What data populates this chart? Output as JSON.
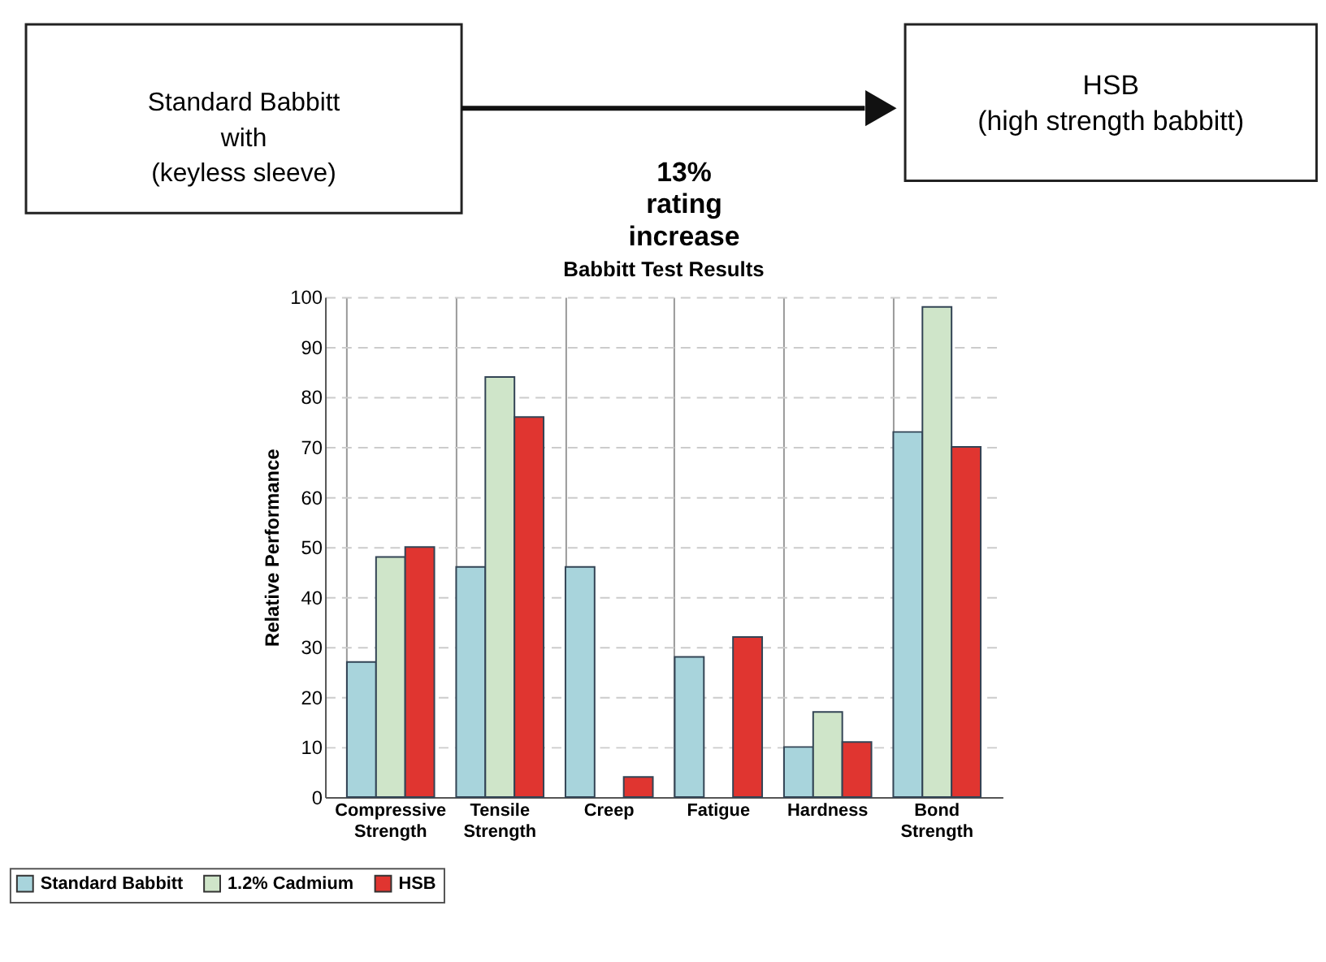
{
  "chart_data": {
    "type": "bar",
    "title": "Babbitt Test Results",
    "ylabel": "Relative Performance",
    "categories": [
      "Compressive Strength",
      "Tensile Strength",
      "Creep",
      "Fatigue",
      "Hardness",
      "Bond Strength"
    ],
    "series": [
      {
        "name": "Standard Babbitt",
        "color": "#a8d4dc",
        "values": [
          27,
          46,
          46,
          28,
          10,
          73
        ]
      },
      {
        "name": "1.2% Cadmium",
        "color": "#cfe5c9",
        "values": [
          48,
          84,
          null,
          null,
          17,
          98
        ]
      },
      {
        "name": "HSB",
        "color": "#e03530",
        "values": [
          50,
          76,
          4,
          32,
          11,
          70
        ]
      }
    ],
    "ylim": [
      0,
      100
    ],
    "yticks": [
      0,
      10,
      20,
      30,
      40,
      50,
      60,
      70,
      80,
      90,
      100
    ],
    "grid": true,
    "legend": "bottom",
    "annotations": [
      "Standard Babbitt\nwith\n(keyless sleeve)",
      "HSB\n(high strength babbitt)",
      "13%\nrating\nincrease"
    ]
  }
}
